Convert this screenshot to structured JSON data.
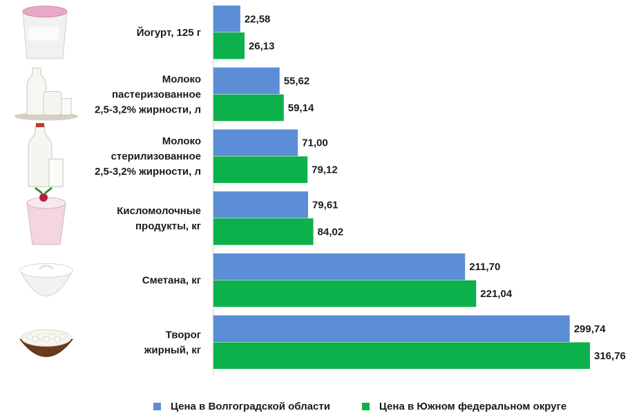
{
  "chart_data": {
    "type": "bar",
    "orientation": "horizontal",
    "categories": [
      [
        "Йогурт, 125 г"
      ],
      [
        "Молоко",
        "пастеризованное",
        "2,5-3,2% жирности, л"
      ],
      [
        "Молоко",
        "стерилизованное",
        "2,5-3,2% жирности, л"
      ],
      [
        "Кисломолочные",
        "продукты, кг"
      ],
      [
        "Сметана, кг"
      ],
      [
        "Творог",
        "жирный, кг"
      ]
    ],
    "category_icons": [
      "yogurt-cup-icon",
      "milk-bottle-jug-icon",
      "milk-bottle-glass-icon",
      "dessert-bowl-icon",
      "sour-cream-bowl-icon",
      "cottage-cheese-bowl-icon"
    ],
    "series": [
      {
        "name": "Цена в Волгоградской области",
        "color": "#5b8ed6",
        "values": [
          22.58,
          55.62,
          71.0,
          79.61,
          211.7,
          299.74
        ],
        "labels": [
          "22,58",
          "55,62",
          "71,00",
          "79,61",
          "211,70",
          "299,74"
        ]
      },
      {
        "name": "Цена в Южном федеральном округе",
        "color": "#0db14b",
        "values": [
          26.13,
          59.14,
          79.12,
          84.02,
          221.04,
          316.76
        ],
        "labels": [
          "26,13",
          "59,14",
          "79,12",
          "84,02",
          "221,04",
          "316,76"
        ]
      }
    ],
    "xlim": [
      0,
      316.76
    ],
    "legend_position": "bottom",
    "grid": false
  }
}
